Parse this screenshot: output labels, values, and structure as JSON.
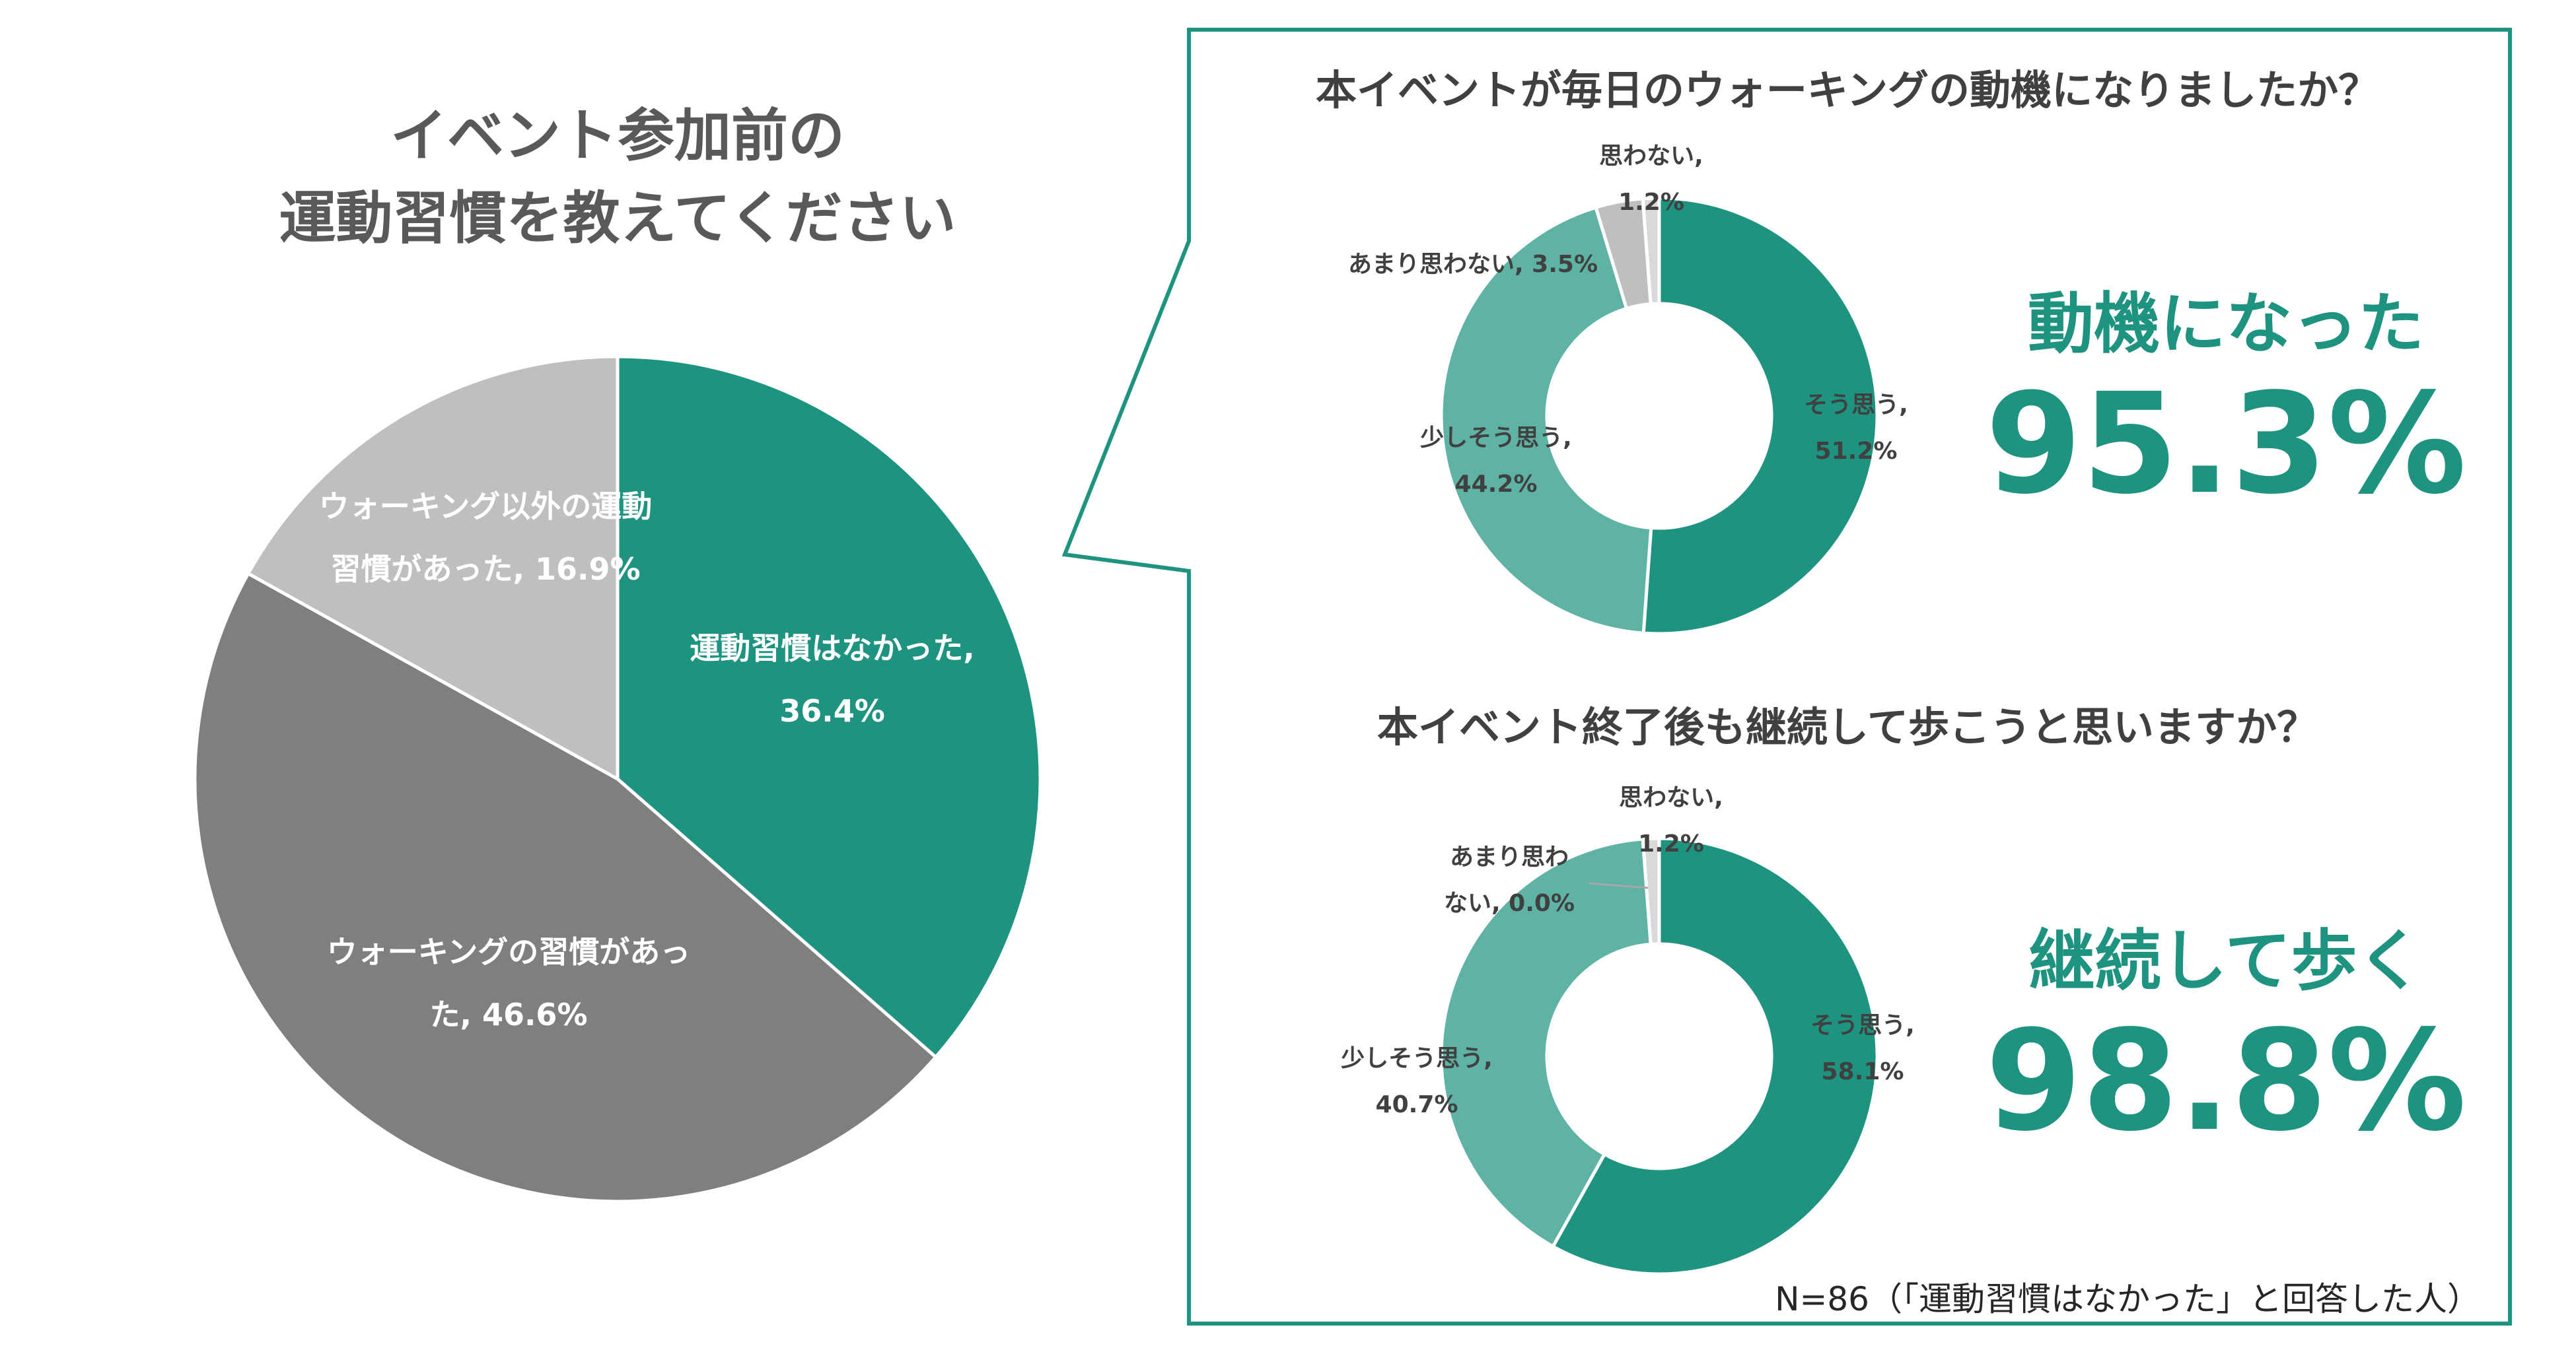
{
  "main_chart": {
    "title_lines": [
      "イベント参加前の",
      "運動習慣を教えてください"
    ]
  },
  "callout": {
    "q1": {
      "title": "本イベントが毎日のウォーキングの動機になりましたか？",
      "highlight_caption": "動機になった",
      "highlight_value": "95.3%"
    },
    "q2": {
      "title": "本イベント終了後も継続して歩こうと思いますか？",
      "highlight_caption": "継続して歩く",
      "highlight_value": "98.8%"
    },
    "note": "N=86（「運動習慣はなかった」と回答した人）"
  },
  "colors": {
    "teal": "#1e9480",
    "teal_light": "#5fb3a4",
    "gray_dark": "#7f7f7f",
    "gray_light": "#bfbfbf",
    "gray_pale": "#d9d9d9",
    "frame": "#1e9480"
  },
  "chart_data": [
    {
      "type": "pie",
      "title": "イベント参加前の運動習慣を教えてください",
      "slices": [
        {
          "category": "運動習慣はなかった",
          "value": 36.4,
          "label_lines": [
            "運動習慣はなかった,",
            "36.4%"
          ],
          "color": "#1e9480"
        },
        {
          "category": "ウォーキングの習慣があった",
          "value": 46.6,
          "label_lines": [
            "ウォーキングの習慣があっ",
            "た, 46.6%"
          ],
          "color": "#7f7f7f"
        },
        {
          "category": "ウォーキング以外の運動習慣があった",
          "value": 16.9,
          "label_lines": [
            "ウォーキング以外の運動",
            "習慣があった, 16.9%"
          ],
          "color": "#bfbfbf"
        }
      ]
    },
    {
      "type": "pie",
      "title": "本イベントが毎日のウォーキングの動機になりましたか？",
      "slices": [
        {
          "category": "そう思う",
          "value": 51.2,
          "label_lines": [
            "そう思う,",
            "51.2%"
          ],
          "color": "#1e9480"
        },
        {
          "category": "少しそう思う",
          "value": 44.2,
          "label_lines": [
            "少しそう思う,",
            "44.2%"
          ],
          "color": "#5fb3a4"
        },
        {
          "category": "あまり思わない",
          "value": 3.5,
          "label_lines": [
            "あまり思わない, 3.5%"
          ],
          "color": "#bfbfbf"
        },
        {
          "category": "思わない",
          "value": 1.2,
          "label_lines": [
            "思わない,",
            "1.2%"
          ],
          "color": "#d9d9d9"
        }
      ]
    },
    {
      "type": "pie",
      "title": "本イベント終了後も継続して歩こうと思いますか？",
      "slices": [
        {
          "category": "そう思う",
          "value": 58.1,
          "label_lines": [
            "そう思う,",
            "58.1%"
          ],
          "color": "#1e9480"
        },
        {
          "category": "少しそう思う",
          "value": 40.7,
          "label_lines": [
            "少しそう思う,",
            "40.7%"
          ],
          "color": "#5fb3a4"
        },
        {
          "category": "あまり思わない",
          "value": 0.0,
          "label_lines": [
            "あまり思わ",
            "ない, 0.0%"
          ],
          "color": "#bfbfbf"
        },
        {
          "category": "思わない",
          "value": 1.2,
          "label_lines": [
            "思わない,",
            "1.2%"
          ],
          "color": "#d9d9d9"
        }
      ]
    }
  ]
}
